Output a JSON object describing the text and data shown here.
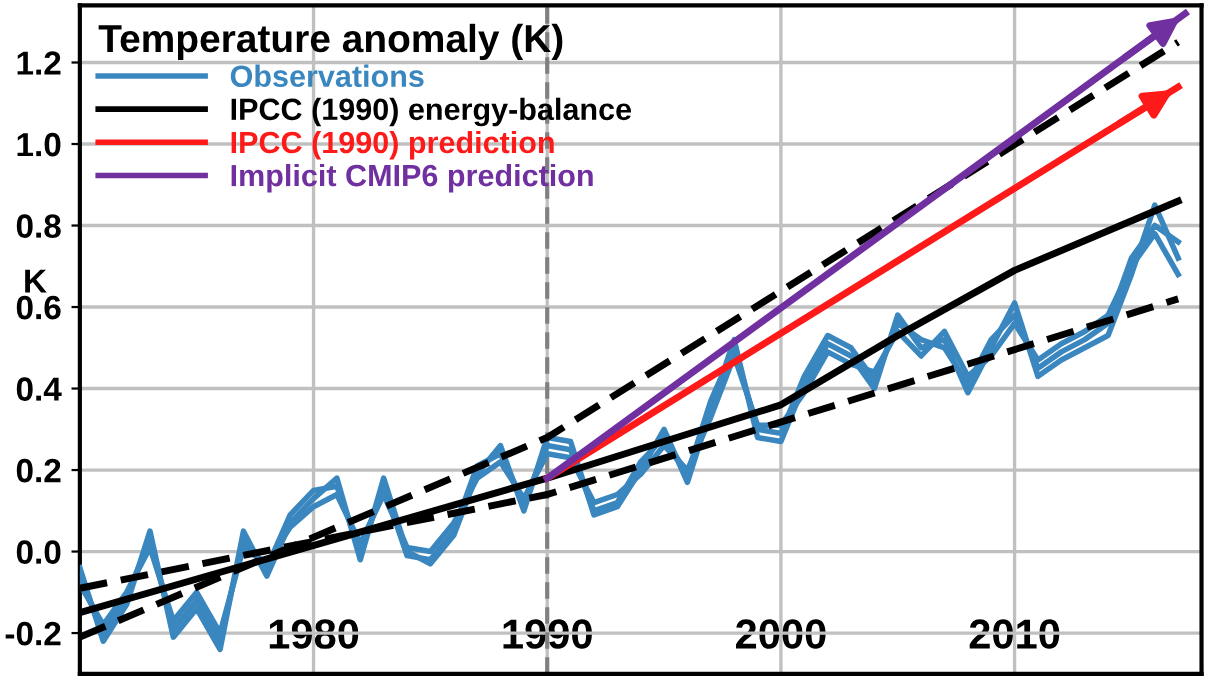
{
  "chart_data": {
    "type": "line",
    "legend_title": "Temperature anomaly (K)",
    "ylabel": "K",
    "xlim": [
      1970,
      2018
    ],
    "ylim": [
      -0.3,
      1.34
    ],
    "xticks": [
      1980,
      1990,
      2000,
      2010
    ],
    "yticks": [
      {
        "value": -0.2,
        "label": "-0.2"
      },
      {
        "value": 0,
        "label": "0.0"
      },
      {
        "value": 0.2,
        "label": "0.2"
      },
      {
        "value": 0.4,
        "label": "0.4"
      },
      {
        "value": 0.6,
        "label": "0.6"
      },
      {
        "value": 0.8,
        "label": "0.8"
      },
      {
        "value": 1.0,
        "label": "1.0"
      },
      {
        "value": 1.2,
        "label": "1.2"
      }
    ],
    "grid": true,
    "legend": "top left",
    "x": [
      1970,
      1971,
      1972,
      1973,
      1974,
      1975,
      1976,
      1977,
      1978,
      1979,
      1980,
      1981,
      1982,
      1983,
      1984,
      1985,
      1986,
      1987,
      1988,
      1989,
      1990,
      1991,
      1992,
      1993,
      1994,
      1995,
      1996,
      1997,
      1998,
      1999,
      2000,
      2001,
      2002,
      2003,
      2004,
      2005,
      2006,
      2007,
      2008,
      2009,
      2010,
      2011,
      2012,
      2013,
      2014,
      2015,
      2016,
      2017
    ],
    "series": [
      {
        "name": "Observations",
        "color": "#3a87c0",
        "values": [
          -0.04,
          -0.22,
          -0.13,
          0.05,
          -0.21,
          -0.14,
          -0.24,
          0.05,
          -0.06,
          0.07,
          0.13,
          0.18,
          -0.02,
          0.18,
          0.0,
          -0.03,
          0.04,
          0.19,
          0.26,
          0.1,
          0.28,
          0.27,
          0.09,
          0.11,
          0.2,
          0.3,
          0.17,
          0.35,
          0.52,
          0.28,
          0.27,
          0.41,
          0.51,
          0.48,
          0.4,
          0.58,
          0.5,
          0.52,
          0.39,
          0.5,
          0.61,
          0.43,
          0.47,
          0.5,
          0.53,
          0.68,
          0.85,
          0.72
        ]
      },
      {
        "color": "#3a87c0",
        "values": [
          -0.06,
          -0.2,
          -0.11,
          0.03,
          -0.19,
          -0.12,
          -0.22,
          0.03,
          -0.04,
          0.09,
          0.15,
          0.16,
          0.0,
          0.16,
          -0.01,
          -0.02,
          0.05,
          0.21,
          0.24,
          0.12,
          0.26,
          0.25,
          0.1,
          0.12,
          0.22,
          0.28,
          0.19,
          0.37,
          0.5,
          0.3,
          0.29,
          0.43,
          0.53,
          0.5,
          0.42,
          0.56,
          0.52,
          0.5,
          0.41,
          0.52,
          0.58,
          0.45,
          0.49,
          0.52,
          0.56,
          0.72,
          0.8,
          0.76
        ]
      },
      {
        "color": "#3a87c0",
        "values": [
          -0.08,
          -0.18,
          -0.1,
          0.01,
          -0.17,
          -0.1,
          -0.2,
          0.01,
          -0.03,
          0.06,
          0.11,
          0.14,
          0.02,
          0.14,
          0.01,
          0.0,
          0.07,
          0.18,
          0.22,
          0.13,
          0.24,
          0.23,
          0.12,
          0.14,
          0.19,
          0.26,
          0.2,
          0.33,
          0.48,
          0.31,
          0.31,
          0.39,
          0.49,
          0.46,
          0.44,
          0.54,
          0.48,
          0.54,
          0.43,
          0.48,
          0.56,
          0.47,
          0.51,
          0.54,
          0.58,
          0.7,
          0.78,
          0.68
        ]
      },
      {
        "name": "IPCC (1990) energy-balance",
        "color": "#000000",
        "x": [
          1970,
          1990,
          1995,
          2000,
          2005,
          2010,
          2017
        ],
        "values": [
          -0.15,
          0.18,
          0.27,
          0.36,
          0.53,
          0.69,
          0.86
        ]
      },
      {
        "color": "#000000",
        "line_style": "dashed",
        "x": [
          1970,
          1990,
          2017
        ],
        "values": [
          -0.21,
          0.28,
          1.25
        ]
      },
      {
        "color": "#000000",
        "line_style": "dashed",
        "x": [
          1970,
          1990,
          2017
        ],
        "values": [
          -0.09,
          0.14,
          0.62
        ]
      },
      {
        "name": "IPCC (1990) prediction",
        "color": "#ff1a1a",
        "x": [
          1990,
          2017
        ],
        "values": [
          0.18,
          1.14
        ]
      },
      {
        "name": "Implicit CMIP6 prediction",
        "color": "#7030a0",
        "x": [
          1990,
          2017.3
        ],
        "values": [
          0.18,
          1.32
        ]
      }
    ],
    "ref_lines": [
      {
        "axis": "x",
        "value": 1990,
        "color": "#808080",
        "line_style": "dashed"
      }
    ]
  }
}
